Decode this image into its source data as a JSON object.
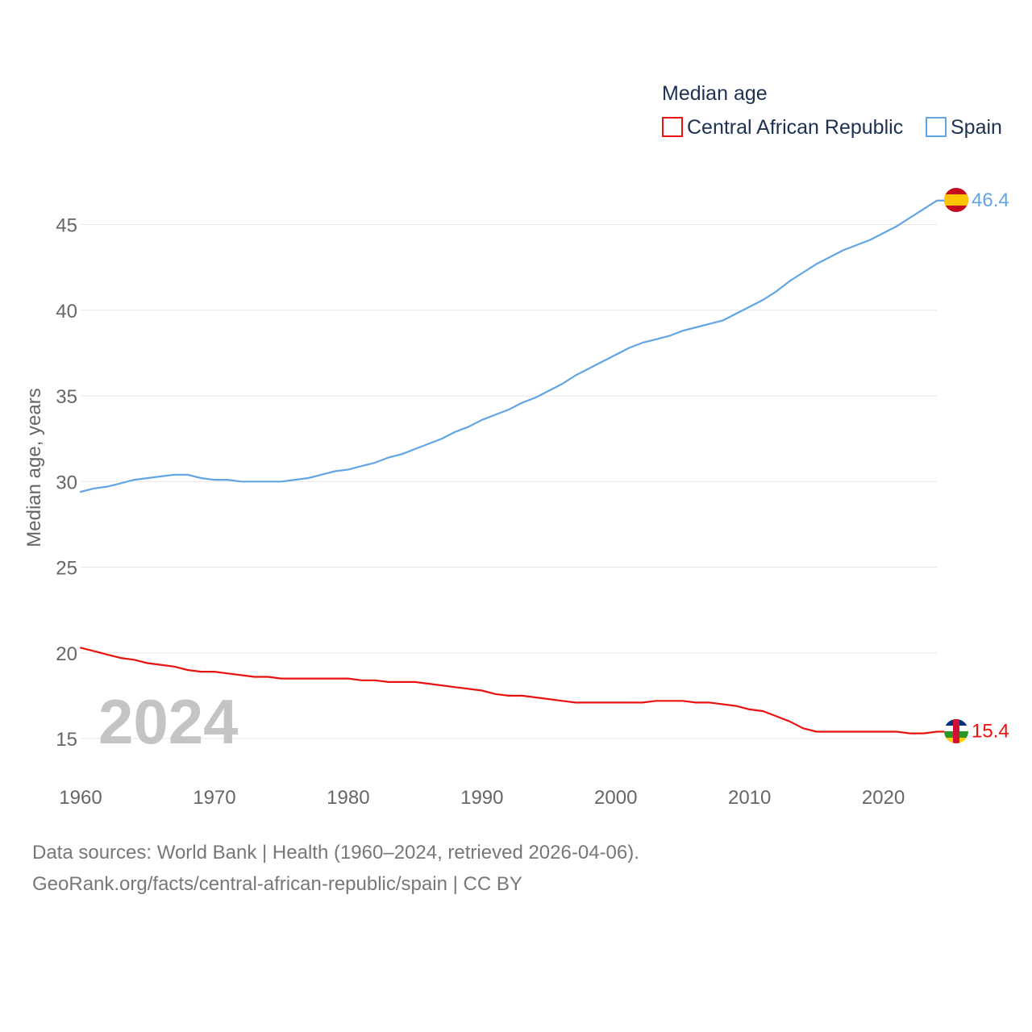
{
  "chart_data": {
    "type": "line",
    "title": "Median age",
    "xlabel": "",
    "ylabel": "Median age, years",
    "xlim": [
      1960,
      2024
    ],
    "ylim": [
      13,
      48
    ],
    "x_ticks": [
      "1960",
      "1970",
      "1980",
      "1990",
      "2000",
      "2010",
      "2020"
    ],
    "y_ticks": [
      "15",
      "20",
      "25",
      "30",
      "35",
      "40",
      "45"
    ],
    "year_label": "2024",
    "x": [
      1960,
      1961,
      1962,
      1963,
      1964,
      1965,
      1966,
      1967,
      1968,
      1969,
      1970,
      1971,
      1972,
      1973,
      1974,
      1975,
      1976,
      1977,
      1978,
      1979,
      1980,
      1981,
      1982,
      1983,
      1984,
      1985,
      1986,
      1987,
      1988,
      1989,
      1990,
      1991,
      1992,
      1993,
      1994,
      1995,
      1996,
      1997,
      1998,
      1999,
      2000,
      2001,
      2002,
      2003,
      2004,
      2005,
      2006,
      2007,
      2008,
      2009,
      2010,
      2011,
      2012,
      2013,
      2014,
      2015,
      2016,
      2017,
      2018,
      2019,
      2020,
      2021,
      2022,
      2023,
      2024
    ],
    "series": [
      {
        "name": "Central African Republic",
        "color": "#e8120f",
        "end_label": "15.4",
        "flag": "central-african-republic-flag-icon",
        "values": [
          20.3,
          20.1,
          19.9,
          19.7,
          19.6,
          19.4,
          19.3,
          19.2,
          19.0,
          18.9,
          18.9,
          18.8,
          18.7,
          18.6,
          18.6,
          18.5,
          18.5,
          18.5,
          18.5,
          18.5,
          18.5,
          18.4,
          18.4,
          18.3,
          18.3,
          18.3,
          18.2,
          18.1,
          18.0,
          17.9,
          17.8,
          17.6,
          17.5,
          17.5,
          17.4,
          17.3,
          17.2,
          17.1,
          17.1,
          17.1,
          17.1,
          17.1,
          17.1,
          17.2,
          17.2,
          17.2,
          17.1,
          17.1,
          17.0,
          16.9,
          16.7,
          16.6,
          16.3,
          16.0,
          15.6,
          15.4,
          15.4,
          15.4,
          15.4,
          15.4,
          15.4,
          15.4,
          15.3,
          15.3,
          15.4
        ]
      },
      {
        "name": "Spain",
        "color": "#62a5e4",
        "end_label": "46.4",
        "flag": "spain-flag-icon",
        "values": [
          29.4,
          29.6,
          29.7,
          29.9,
          30.1,
          30.2,
          30.3,
          30.4,
          30.4,
          30.2,
          30.1,
          30.1,
          30.0,
          30.0,
          30.0,
          30.0,
          30.1,
          30.2,
          30.4,
          30.6,
          30.7,
          30.9,
          31.1,
          31.4,
          31.6,
          31.9,
          32.2,
          32.5,
          32.9,
          33.2,
          33.6,
          33.9,
          34.2,
          34.6,
          34.9,
          35.3,
          35.7,
          36.2,
          36.6,
          37.0,
          37.4,
          37.8,
          38.1,
          38.3,
          38.5,
          38.8,
          39.0,
          39.2,
          39.4,
          39.8,
          40.2,
          40.6,
          41.1,
          41.7,
          42.2,
          42.7,
          43.1,
          43.5,
          43.8,
          44.1,
          44.5,
          44.9,
          45.4,
          45.9,
          46.4
        ]
      }
    ]
  },
  "source": {
    "line1": "Data sources: World Bank | Health (1960–2024, retrieved 2026-04-06).",
    "line2": "GeoRank.org/facts/central-african-republic/spain | CC BY"
  }
}
